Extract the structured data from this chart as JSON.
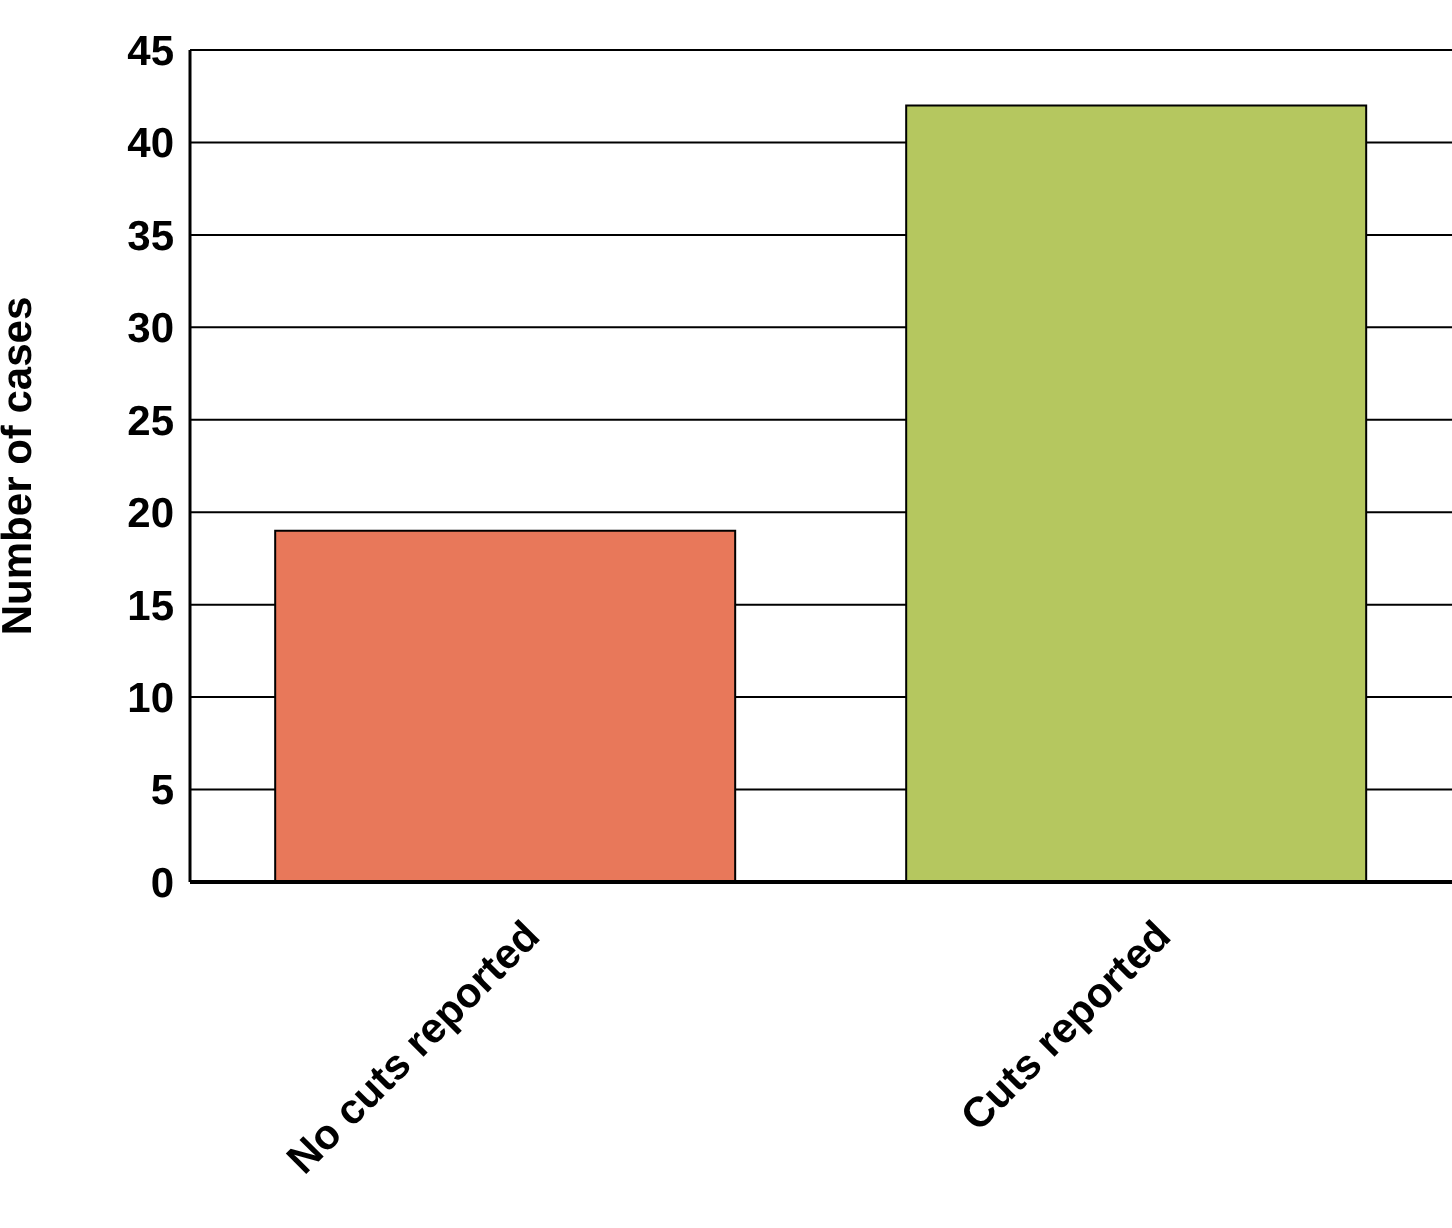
{
  "chart_data": {
    "type": "bar",
    "ylabel": "Number of cases",
    "categories": [
      "No cuts reported",
      "Cuts reported"
    ],
    "values": [
      19,
      42
    ],
    "colors": [
      "#e8785a",
      "#b5c75f"
    ],
    "ylim": [
      0,
      45
    ],
    "yticks": [
      0,
      5,
      10,
      15,
      20,
      25,
      30,
      35,
      40,
      45
    ],
    "grid": "y"
  }
}
